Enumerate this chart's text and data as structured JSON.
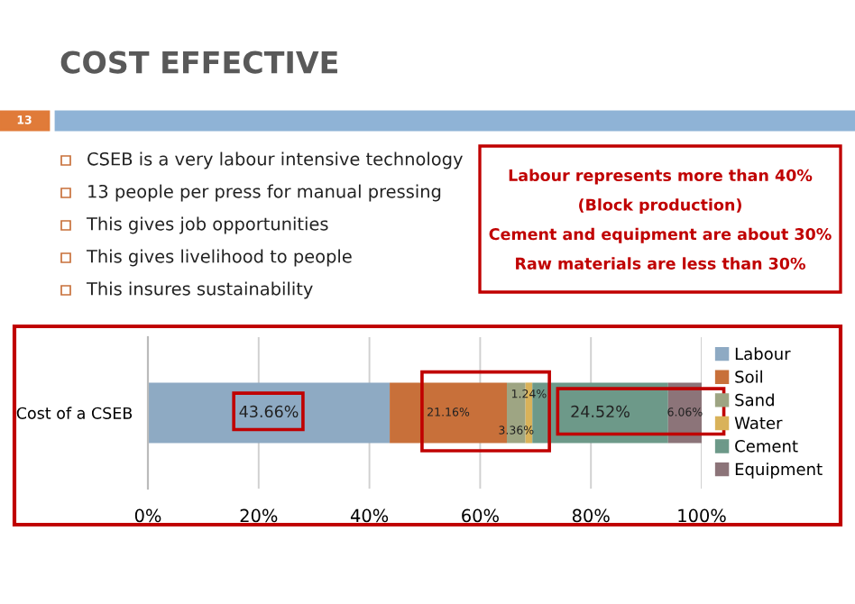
{
  "chart_data": {
    "type": "bar",
    "orientation": "horizontal",
    "stacked": true,
    "title": "COST EFFECTIVE",
    "categories": [
      "Cost of a CSEB"
    ],
    "series": [
      {
        "name": "Labour",
        "color": "#8eaac3",
        "values": [
          43.66
        ],
        "value_labels": [
          "43.66%"
        ]
      },
      {
        "name": "Soil",
        "color": "#c8703a",
        "values": [
          21.16
        ],
        "value_labels": [
          "21.16%"
        ]
      },
      {
        "name": "Sand",
        "color": "#9ea583",
        "values": [
          3.36
        ],
        "value_labels": [
          "3.36%"
        ]
      },
      {
        "name": "Water",
        "color": "#d9b25a",
        "values": [
          1.24
        ],
        "value_labels": [
          "1.24%"
        ]
      },
      {
        "name": "Cement",
        "color": "#6d9989",
        "values": [
          24.52
        ],
        "value_labels": [
          "24.52%"
        ]
      },
      {
        "name": "Equipment",
        "color": "#8c7479",
        "values": [
          6.06
        ],
        "value_labels": [
          "6.06%"
        ]
      }
    ],
    "xlim": [
      0,
      100
    ],
    "xticks": [
      {
        "value": 0,
        "label": "0%"
      },
      {
        "value": 20,
        "label": "20%"
      },
      {
        "value": 40,
        "label": "40%"
      },
      {
        "value": 60,
        "label": "60%"
      },
      {
        "value": 80,
        "label": "80%"
      },
      {
        "value": 100,
        "label": "100%"
      }
    ],
    "grid": "x",
    "legend": "right",
    "annotations": [
      "13",
      "CSEB is a very labour intensive technology",
      "13 people per press for manual pressing",
      "This gives job opportunities",
      "This gives livelihood to people",
      "This insures sustainability",
      "Labour represents more than 40%",
      "(Block production)",
      "Cement and equipment are about 30%",
      "Raw materials are less than 30%"
    ]
  }
}
